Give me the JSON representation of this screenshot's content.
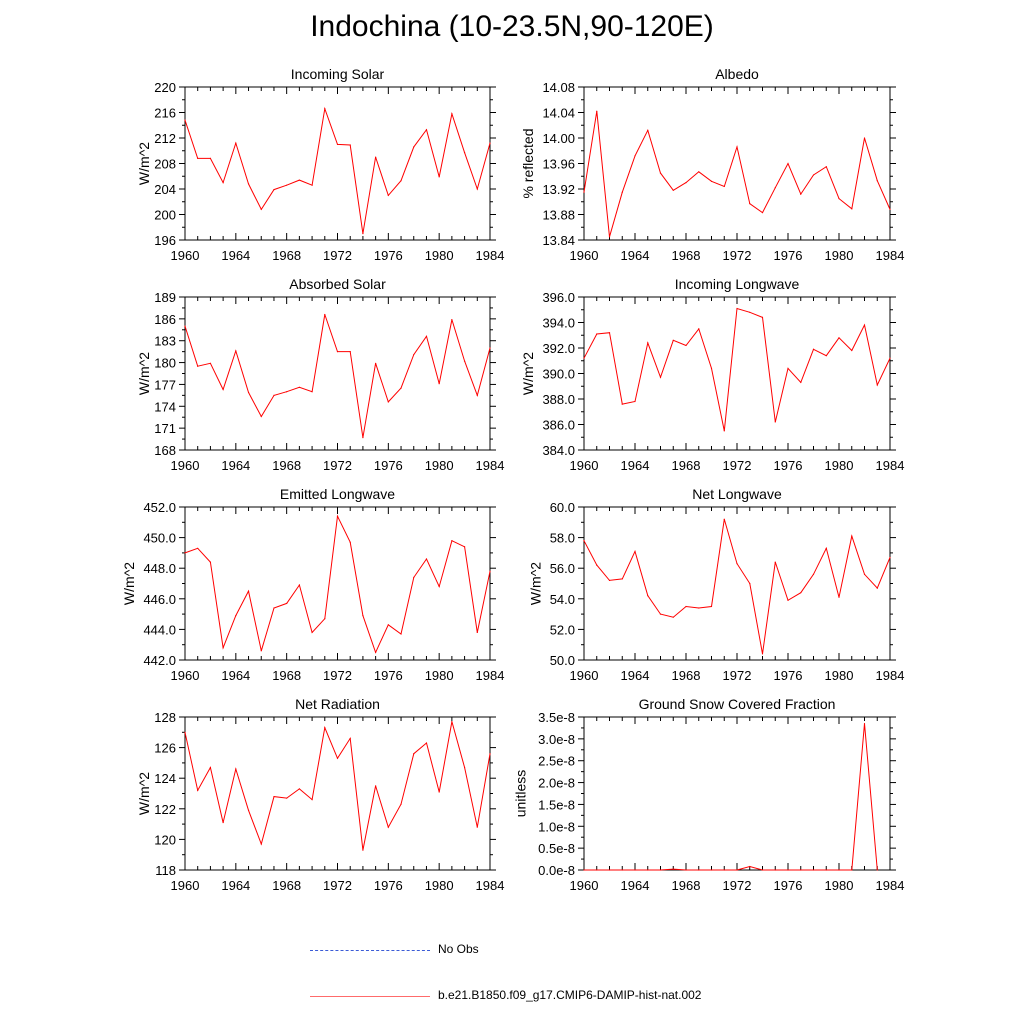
{
  "figure": {
    "title": "Indochina (10-23.5N,90-120E)"
  },
  "legend": {
    "entries": [
      {
        "label": "No Obs",
        "color": "#3b5bd6",
        "style": "dashed"
      },
      {
        "label": "b.e21.B1850.f09_g17.CMIP6-DAMIP-hist-nat.002",
        "color": "#ff0000",
        "style": "solid"
      }
    ]
  },
  "chart_data": [
    {
      "type": "line",
      "title": "Incoming Solar",
      "ylabel": "W/m^2",
      "xlim": [
        1960,
        1984
      ],
      "ylim": [
        196,
        220
      ],
      "xticks": [
        1960,
        1964,
        1968,
        1972,
        1976,
        1980,
        1984
      ],
      "yticks": [
        196,
        200,
        204,
        208,
        212,
        216,
        220
      ],
      "ytick_labels": [
        "196",
        "200",
        "204",
        "208",
        "212",
        "216",
        "220"
      ],
      "series": [
        {
          "color": "#ff0000",
          "x": [
            1960,
            1961,
            1962,
            1963,
            1964,
            1965,
            1966,
            1967,
            1968,
            1969,
            1970,
            1971,
            1972,
            1973,
            1974,
            1975,
            1976,
            1977,
            1978,
            1979,
            1980,
            1981,
            1982,
            1983,
            1984
          ],
          "y": [
            214.8,
            208.8,
            208.8,
            205.0,
            211.2,
            204.8,
            200.8,
            203.9,
            204.6,
            205.4,
            204.6,
            216.6,
            211.0,
            210.9,
            197.0,
            209.0,
            203.0,
            205.3,
            210.6,
            213.3,
            205.9,
            215.8,
            209.7,
            204.0,
            211.2
          ]
        }
      ]
    },
    {
      "type": "line",
      "title": "Albedo",
      "ylabel": "% reflected",
      "xlim": [
        1960,
        1984
      ],
      "ylim": [
        13.84,
        14.08
      ],
      "xticks": [
        1960,
        1964,
        1968,
        1972,
        1976,
        1980,
        1984
      ],
      "yticks": [
        13.84,
        13.88,
        13.92,
        13.96,
        14.0,
        14.04,
        14.08
      ],
      "ytick_labels": [
        "13.84",
        "13.88",
        "13.92",
        "13.96",
        "14.00",
        "14.04",
        "14.08"
      ],
      "series": [
        {
          "color": "#ff0000",
          "x": [
            1960,
            1961,
            1962,
            1963,
            1964,
            1965,
            1966,
            1967,
            1968,
            1969,
            1970,
            1971,
            1972,
            1973,
            1974,
            1975,
            1976,
            1977,
            1978,
            1979,
            1980,
            1981,
            1982,
            1983,
            1984
          ],
          "y": [
            13.915,
            14.042,
            13.845,
            13.915,
            13.972,
            14.012,
            13.945,
            13.918,
            13.93,
            13.947,
            13.932,
            13.924,
            13.986,
            13.897,
            13.883,
            13.922,
            13.96,
            13.912,
            13.942,
            13.955,
            13.905,
            13.889,
            14.0,
            13.933,
            13.888
          ]
        }
      ]
    },
    {
      "type": "line",
      "title": "Absorbed Solar",
      "ylabel": "W/m^2",
      "xlim": [
        1960,
        1984
      ],
      "ylim": [
        168,
        189
      ],
      "xticks": [
        1960,
        1964,
        1968,
        1972,
        1976,
        1980,
        1984
      ],
      "yticks": [
        168,
        171,
        174,
        177,
        180,
        183,
        186,
        189
      ],
      "ytick_labels": [
        "168",
        "171",
        "174",
        "177",
        "180",
        "183",
        "186",
        "189"
      ],
      "series": [
        {
          "color": "#ff0000",
          "x": [
            1960,
            1961,
            1962,
            1963,
            1964,
            1965,
            1966,
            1967,
            1968,
            1969,
            1970,
            1971,
            1972,
            1973,
            1974,
            1975,
            1976,
            1977,
            1978,
            1979,
            1980,
            1981,
            1982,
            1983,
            1984
          ],
          "y": [
            185.0,
            179.5,
            179.9,
            176.3,
            181.6,
            175.9,
            172.6,
            175.5,
            176.0,
            176.6,
            176.0,
            186.6,
            181.5,
            181.5,
            169.7,
            179.9,
            174.6,
            176.5,
            181.1,
            183.6,
            177.1,
            185.9,
            180.2,
            175.5,
            182.0
          ]
        }
      ]
    },
    {
      "type": "line",
      "title": "Incoming Longwave",
      "ylabel": "W/m^2",
      "xlim": [
        1960,
        1984
      ],
      "ylim": [
        384,
        396
      ],
      "xticks": [
        1960,
        1964,
        1968,
        1972,
        1976,
        1980,
        1984
      ],
      "yticks": [
        384,
        386,
        388,
        390,
        392,
        394,
        396
      ],
      "ytick_labels": [
        "384.0",
        "386.0",
        "388.0",
        "390.0",
        "392.0",
        "394.0",
        "396.0"
      ],
      "series": [
        {
          "color": "#ff0000",
          "x": [
            1960,
            1961,
            1962,
            1963,
            1964,
            1965,
            1966,
            1967,
            1968,
            1969,
            1970,
            1971,
            1972,
            1973,
            1974,
            1975,
            1976,
            1977,
            1978,
            1979,
            1980,
            1981,
            1982,
            1983,
            1984
          ],
          "y": [
            391.2,
            393.1,
            393.2,
            387.6,
            387.8,
            392.4,
            389.7,
            392.6,
            392.2,
            393.5,
            390.4,
            385.5,
            395.1,
            394.8,
            394.4,
            386.2,
            390.4,
            389.3,
            391.9,
            391.4,
            392.8,
            391.8,
            393.8,
            389.1,
            391.2
          ]
        }
      ]
    },
    {
      "type": "line",
      "title": "Emitted Longwave",
      "ylabel": "W/m^2",
      "xlim": [
        1960,
        1984
      ],
      "ylim": [
        442,
        452
      ],
      "xticks": [
        1960,
        1964,
        1968,
        1972,
        1976,
        1980,
        1984
      ],
      "yticks": [
        442,
        444,
        446,
        448,
        450,
        452
      ],
      "ytick_labels": [
        "442.0",
        "444.0",
        "446.0",
        "448.0",
        "450.0",
        "452.0"
      ],
      "series": [
        {
          "color": "#ff0000",
          "x": [
            1960,
            1961,
            1962,
            1963,
            1964,
            1965,
            1966,
            1967,
            1968,
            1969,
            1970,
            1971,
            1972,
            1973,
            1974,
            1975,
            1976,
            1977,
            1978,
            1979,
            1980,
            1981,
            1982,
            1983,
            1984
          ],
          "y": [
            449.0,
            449.3,
            448.4,
            442.8,
            444.9,
            446.5,
            442.6,
            445.4,
            445.7,
            446.9,
            443.8,
            444.7,
            451.4,
            449.7,
            444.9,
            442.5,
            444.3,
            443.7,
            447.4,
            448.6,
            446.8,
            449.8,
            449.4,
            443.8,
            447.8
          ]
        }
      ]
    },
    {
      "type": "line",
      "title": "Net Longwave",
      "ylabel": "W/m^2",
      "xlim": [
        1960,
        1984
      ],
      "ylim": [
        50,
        60
      ],
      "xticks": [
        1960,
        1964,
        1968,
        1972,
        1976,
        1980,
        1984
      ],
      "yticks": [
        50,
        52,
        54,
        56,
        58,
        60
      ],
      "ytick_labels": [
        "50.0",
        "52.0",
        "54.0",
        "56.0",
        "58.0",
        "60.0"
      ],
      "series": [
        {
          "color": "#ff0000",
          "x": [
            1960,
            1961,
            1962,
            1963,
            1964,
            1965,
            1966,
            1967,
            1968,
            1969,
            1970,
            1971,
            1972,
            1973,
            1974,
            1975,
            1976,
            1977,
            1978,
            1979,
            1980,
            1981,
            1982,
            1983,
            1984
          ],
          "y": [
            57.8,
            56.2,
            55.2,
            55.3,
            57.1,
            54.2,
            53.0,
            52.8,
            53.5,
            53.4,
            53.5,
            59.2,
            56.3,
            55.0,
            50.4,
            56.4,
            53.9,
            54.4,
            55.6,
            57.3,
            54.1,
            58.1,
            55.6,
            54.7,
            56.7
          ]
        }
      ]
    },
    {
      "type": "line",
      "title": "Net Radiation",
      "ylabel": "W/m^2",
      "xlim": [
        1960,
        1984
      ],
      "ylim": [
        118,
        128
      ],
      "xticks": [
        1960,
        1964,
        1968,
        1972,
        1976,
        1980,
        1984
      ],
      "yticks": [
        118,
        120,
        122,
        124,
        126,
        128
      ],
      "ytick_labels": [
        "118",
        "120",
        "122",
        "124",
        "126",
        "128"
      ],
      "series": [
        {
          "color": "#ff0000",
          "x": [
            1960,
            1961,
            1962,
            1963,
            1964,
            1965,
            1966,
            1967,
            1968,
            1969,
            1970,
            1971,
            1972,
            1973,
            1974,
            1975,
            1976,
            1977,
            1978,
            1979,
            1980,
            1981,
            1982,
            1983,
            1984
          ],
          "y": [
            127.0,
            123.2,
            124.7,
            121.1,
            124.6,
            121.9,
            119.7,
            122.8,
            122.7,
            123.3,
            122.6,
            127.3,
            125.3,
            126.6,
            119.3,
            123.5,
            120.8,
            122.3,
            125.6,
            126.3,
            123.1,
            127.7,
            124.7,
            120.8,
            125.6
          ]
        }
      ]
    },
    {
      "type": "line",
      "title": "Ground Snow Covered Fraction",
      "ylabel": "unitless",
      "xlim": [
        1960,
        1984
      ],
      "ylim": [
        0,
        3.5e-08
      ],
      "xticks": [
        1960,
        1964,
        1968,
        1972,
        1976,
        1980,
        1984
      ],
      "yticks": [
        0,
        5e-09,
        1e-08,
        1.5e-08,
        2e-08,
        2.5e-08,
        3e-08,
        3.5e-08
      ],
      "ytick_labels": [
        "0.0e-8",
        "0.5e-8",
        "1.0e-8",
        "1.5e-8",
        "2.0e-8",
        "2.5e-8",
        "3.0e-8",
        "3.5e-8"
      ],
      "series": [
        {
          "color": "#ff0000",
          "x": [
            1960,
            1961,
            1962,
            1963,
            1964,
            1965,
            1966,
            1967,
            1968,
            1969,
            1970,
            1971,
            1972,
            1973,
            1974,
            1975,
            1976,
            1977,
            1978,
            1979,
            1980,
            1981,
            1982,
            1983
          ],
          "y": [
            0,
            0,
            0,
            0,
            0,
            0,
            0,
            2e-10,
            0,
            0,
            0,
            0,
            0,
            8e-10,
            0,
            0,
            0,
            0,
            0,
            0,
            0,
            0,
            3.35e-08,
            0
          ]
        }
      ]
    }
  ]
}
